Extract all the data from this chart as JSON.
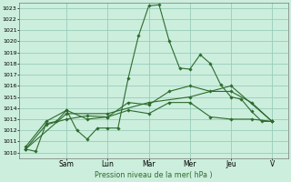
{
  "title": "Pression niveau de la mer( hPa )",
  "bg_color": "#cceedd",
  "grid_color": "#99ccbb",
  "line_color": "#2d6b2d",
  "ylim": [
    1009.5,
    1023.5
  ],
  "yticks": [
    1010,
    1011,
    1012,
    1013,
    1014,
    1015,
    1016,
    1017,
    1018,
    1019,
    1020,
    1021,
    1022,
    1023
  ],
  "day_labels": [
    "Sam",
    "Lun",
    "Mar",
    "Mer",
    "Jeu",
    "V"
  ],
  "day_positions": [
    2,
    4,
    6,
    8,
    10,
    12
  ],
  "xlim": [
    -0.3,
    12.8
  ],
  "lines": [
    {
      "x": [
        0,
        0.5,
        1,
        1.5,
        2,
        2.5,
        3,
        3.5,
        4,
        4.5,
        5,
        5.5,
        6,
        6.5,
        7,
        7.5,
        8,
        8.5,
        9,
        9.5,
        10,
        10.5,
        11,
        11.5,
        12
      ],
      "y": [
        1010.3,
        1010.1,
        1012.6,
        1012.8,
        1013.8,
        1012.0,
        1011.2,
        1012.2,
        1012.2,
        1012.2,
        1016.7,
        1020.5,
        1023.2,
        1023.3,
        1020.0,
        1017.6,
        1017.5,
        1018.8,
        1018.0,
        1016.1,
        1015.0,
        1014.8,
        1013.7,
        1012.8,
        1012.8
      ]
    },
    {
      "x": [
        0,
        1,
        2,
        3,
        4,
        5,
        6,
        7,
        8,
        9,
        10,
        11,
        12
      ],
      "y": [
        1010.5,
        1012.8,
        1013.8,
        1013.0,
        1013.2,
        1014.5,
        1014.3,
        1015.5,
        1016.0,
        1015.5,
        1015.5,
        1014.5,
        1012.8
      ]
    },
    {
      "x": [
        0,
        1,
        2,
        3,
        4,
        5,
        6,
        7,
        8,
        9,
        10,
        11,
        12
      ],
      "y": [
        1010.3,
        1012.5,
        1013.0,
        1013.3,
        1013.2,
        1013.8,
        1013.5,
        1014.5,
        1014.5,
        1013.2,
        1013.0,
        1013.0,
        1012.8
      ]
    },
    {
      "x": [
        0,
        2,
        4,
        6,
        8,
        10,
        12
      ],
      "y": [
        1010.3,
        1013.5,
        1013.5,
        1014.5,
        1015.0,
        1016.0,
        1012.8
      ]
    }
  ]
}
